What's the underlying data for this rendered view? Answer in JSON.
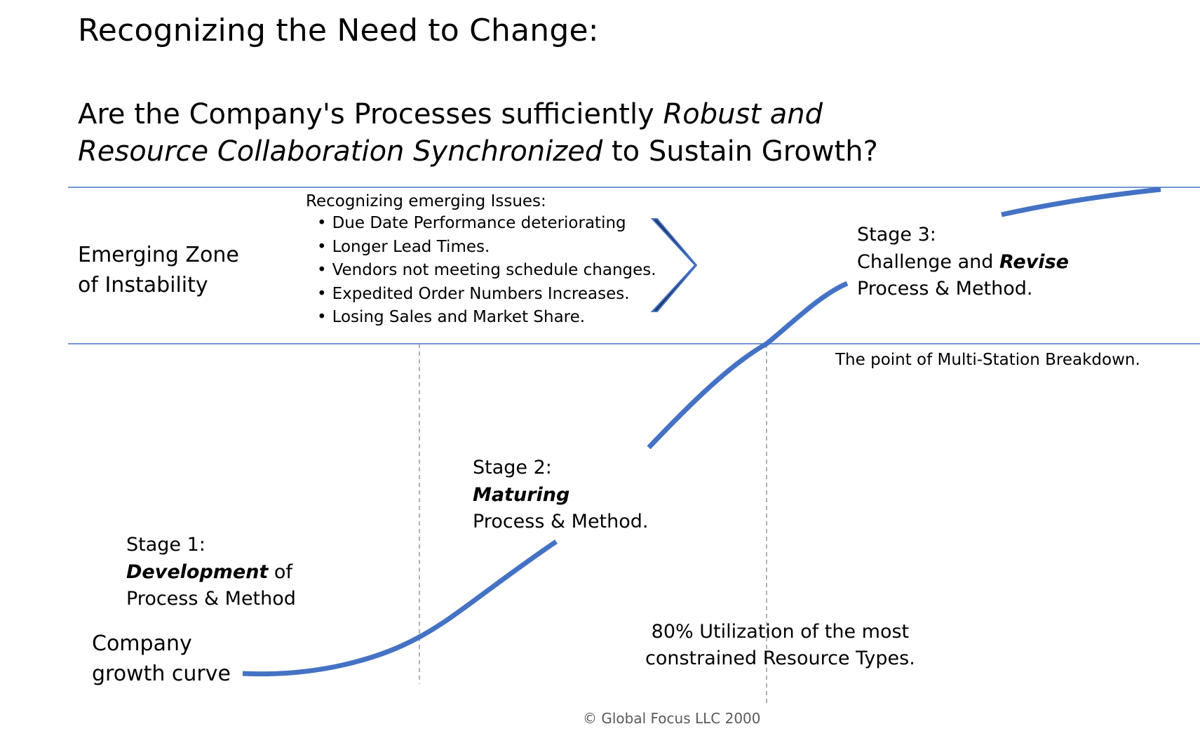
{
  "title": "Recognizing the Need to Change:",
  "question": {
    "line1_plain": "Are the Company's Processes sufficiently ",
    "line1_italic": "Robust and",
    "line2_italic": "Resource Collaboration Synchronized",
    "line2_plain": " to Sustain Growth?"
  },
  "zone_label": {
    "line1": "Emerging Zone",
    "line2": "of Instability"
  },
  "issues": {
    "heading": "Recognizing emerging Issues:",
    "items": [
      "Due Date Performance deteriorating",
      "Longer Lead Times.",
      "Vendors not meeting schedule changes.",
      "Expedited Order Numbers Increases.",
      "Losing Sales and Market Share."
    ]
  },
  "stage3": {
    "heading": "Stage 3:",
    "line2_plain": "Challenge and ",
    "line2_bold": "Revise",
    "line3": "Process & Method."
  },
  "stage2": {
    "heading": "Stage 2:",
    "line2_bold": "Maturing",
    "line3": "Process & Method."
  },
  "stage1": {
    "heading": "Stage 1:",
    "line2_bold": "Development",
    "line2_plain": " of",
    "line3": "Process & Method"
  },
  "breakdown_note": "The point of Multi-Station Breakdown.",
  "utilization_note": {
    "line1": "80% Utilization of the most",
    "line2": "constrained Resource Types."
  },
  "growth_label": {
    "line1": "Company",
    "line2": "growth curve"
  },
  "copyright": "© Global Focus LLC 2000",
  "colors": {
    "curve": "#4472C4",
    "zone_lines": "#4472C4",
    "dashed": "#999999",
    "chevron_fill": "#1F3864",
    "chevron_outline": "#4472C4"
  }
}
